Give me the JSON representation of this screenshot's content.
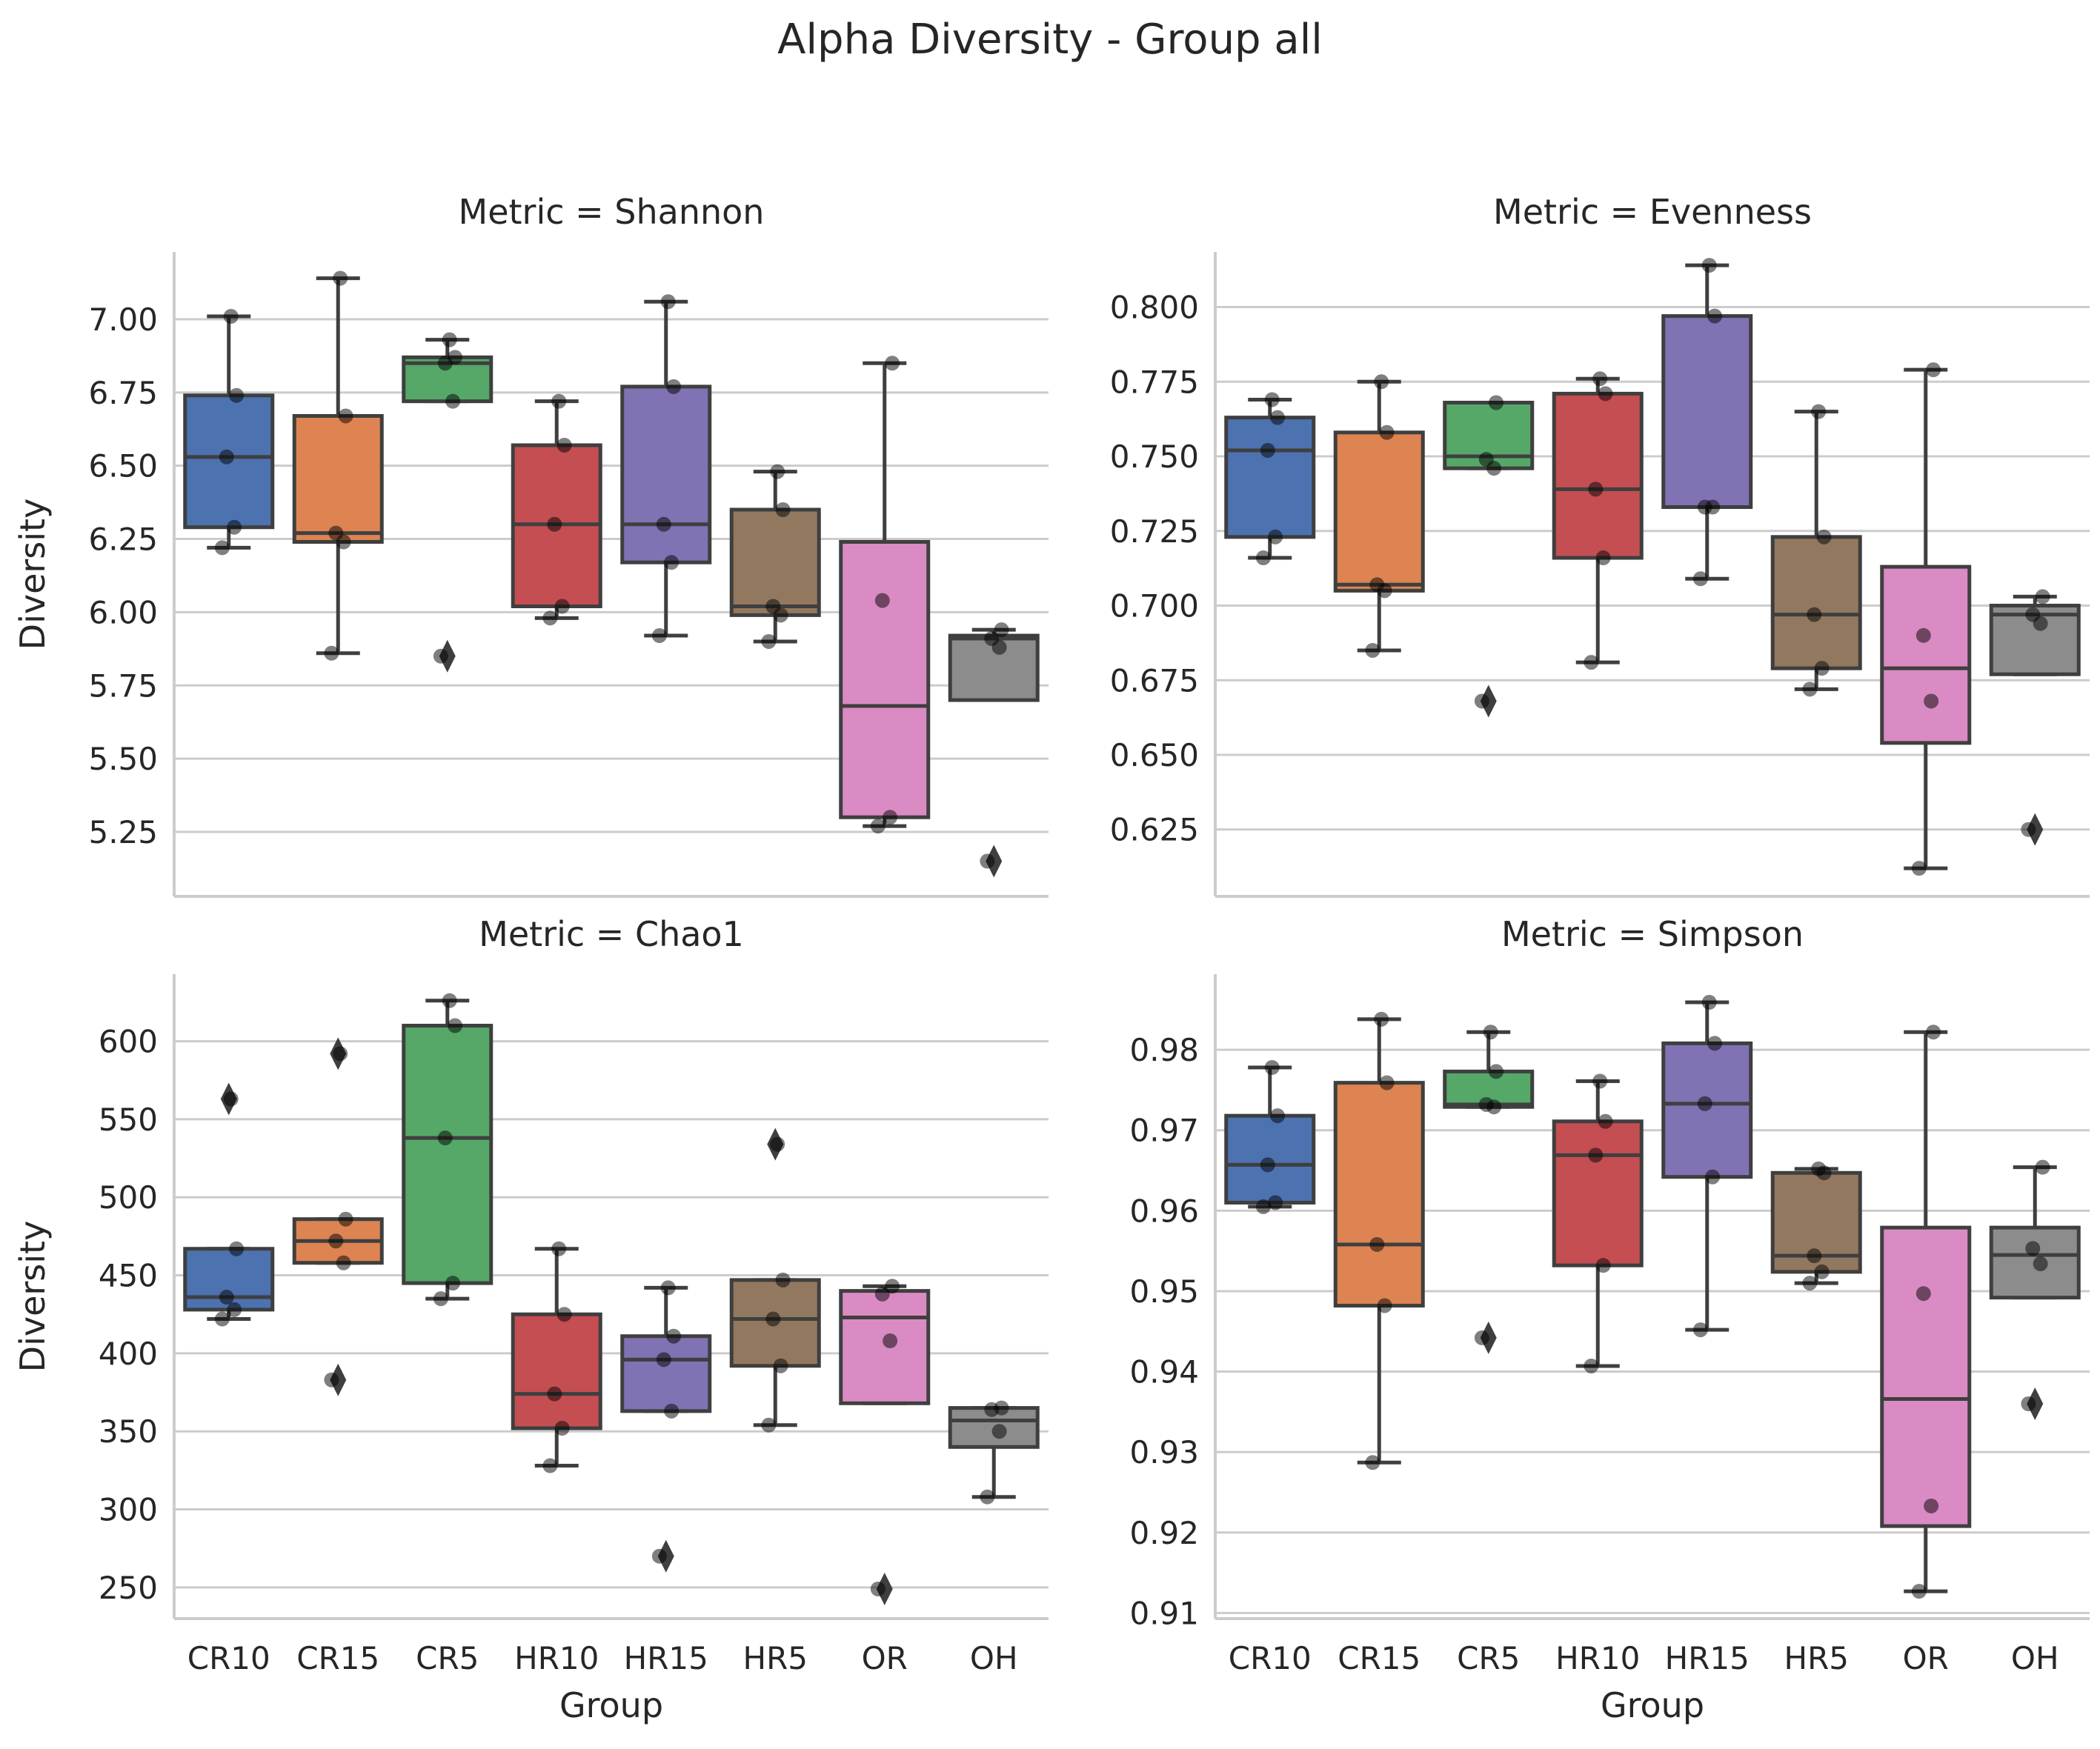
{
  "title": "Alpha Diversity - Group all",
  "xlabel": "Group",
  "ylabel": "Diversity",
  "categories": [
    "CR10",
    "CR15",
    "CR5",
    "HR10",
    "HR15",
    "HR5",
    "OR",
    "OH"
  ],
  "colors": [
    "#4c72b0",
    "#dd8452",
    "#55a868",
    "#c44e52",
    "#8172b3",
    "#937860",
    "#da8bc3",
    "#8c8c8c"
  ],
  "chart_data": [
    {
      "type": "box",
      "title": "Metric = Shannon",
      "ylabel": "Diversity",
      "xlabel": "",
      "ylim": [
        5.03,
        7.23
      ],
      "yticks": [
        "5.25",
        "5.50",
        "5.75",
        "6.00",
        "6.25",
        "6.50",
        "6.75",
        "7.00"
      ],
      "show_xticklabels": false,
      "boxes": [
        {
          "group": "CR10",
          "q1": 6.29,
          "median": 6.53,
          "q3": 6.74,
          "whislo": 6.22,
          "whishi": 7.01,
          "fliers": [],
          "points": [
            6.22,
            6.29,
            6.53,
            6.74,
            7.01
          ]
        },
        {
          "group": "CR15",
          "q1": 6.24,
          "median": 6.27,
          "q3": 6.67,
          "whislo": 5.86,
          "whishi": 7.14,
          "fliers": [],
          "points": [
            5.86,
            6.24,
            6.27,
            6.67,
            7.14
          ]
        },
        {
          "group": "CR5",
          "q1": 6.72,
          "median": 6.85,
          "q3": 6.87,
          "whislo": 6.72,
          "whishi": 6.93,
          "fliers": [
            5.85
          ],
          "points": [
            5.85,
            6.72,
            6.85,
            6.87,
            6.93
          ]
        },
        {
          "group": "HR10",
          "q1": 6.02,
          "median": 6.3,
          "q3": 6.57,
          "whislo": 5.98,
          "whishi": 6.72,
          "fliers": [],
          "points": [
            5.98,
            6.02,
            6.3,
            6.57,
            6.72
          ]
        },
        {
          "group": "HR15",
          "q1": 6.17,
          "median": 6.3,
          "q3": 6.77,
          "whislo": 5.92,
          "whishi": 7.06,
          "fliers": [],
          "points": [
            5.92,
            6.17,
            6.3,
            6.77,
            7.06
          ]
        },
        {
          "group": "HR5",
          "q1": 5.99,
          "median": 6.02,
          "q3": 6.35,
          "whislo": 5.9,
          "whishi": 6.48,
          "fliers": [],
          "points": [
            5.9,
            5.99,
            6.02,
            6.35,
            6.48
          ]
        },
        {
          "group": "OR",
          "q1": 5.3,
          "median": 5.68,
          "q3": 6.24,
          "whislo": 5.27,
          "whishi": 6.85,
          "fliers": [],
          "points": [
            5.27,
            5.3,
            6.04,
            6.85
          ]
        },
        {
          "group": "OH",
          "q1": 5.7,
          "median": 5.91,
          "q3": 5.92,
          "whislo": 5.7,
          "whishi": 5.94,
          "fliers": [
            5.15
          ],
          "points": [
            5.15,
            5.88,
            5.91,
            5.94
          ]
        }
      ]
    },
    {
      "type": "box",
      "title": "Metric = Evenness",
      "ylabel": "",
      "xlabel": "",
      "ylim": [
        0.6026,
        0.8185
      ],
      "yticks": [
        "0.625",
        "0.650",
        "0.675",
        "0.700",
        "0.725",
        "0.750",
        "0.775",
        "0.800"
      ],
      "show_xticklabels": false,
      "boxes": [
        {
          "group": "CR10",
          "q1": 0.723,
          "median": 0.752,
          "q3": 0.763,
          "whislo": 0.716,
          "whishi": 0.769,
          "fliers": [],
          "points": [
            0.716,
            0.723,
            0.752,
            0.763,
            0.769
          ]
        },
        {
          "group": "CR15",
          "q1": 0.705,
          "median": 0.707,
          "q3": 0.758,
          "whislo": 0.685,
          "whishi": 0.775,
          "fliers": [],
          "points": [
            0.685,
            0.705,
            0.707,
            0.758,
            0.775
          ]
        },
        {
          "group": "CR5",
          "q1": 0.746,
          "median": 0.75,
          "q3": 0.768,
          "whislo": 0.746,
          "whishi": 0.768,
          "fliers": [
            0.668
          ],
          "points": [
            0.668,
            0.746,
            0.749,
            0.768
          ]
        },
        {
          "group": "HR10",
          "q1": 0.716,
          "median": 0.739,
          "q3": 0.771,
          "whislo": 0.681,
          "whishi": 0.776,
          "fliers": [],
          "points": [
            0.681,
            0.716,
            0.739,
            0.771,
            0.776
          ]
        },
        {
          "group": "HR15",
          "q1": 0.733,
          "median": 0.733,
          "q3": 0.797,
          "whislo": 0.709,
          "whishi": 0.814,
          "fliers": [],
          "points": [
            0.709,
            0.733,
            0.733,
            0.797,
            0.814
          ]
        },
        {
          "group": "HR5",
          "q1": 0.679,
          "median": 0.697,
          "q3": 0.723,
          "whislo": 0.672,
          "whishi": 0.765,
          "fliers": [],
          "points": [
            0.672,
            0.679,
            0.697,
            0.723,
            0.765
          ]
        },
        {
          "group": "OR",
          "q1": 0.654,
          "median": 0.679,
          "q3": 0.713,
          "whislo": 0.612,
          "whishi": 0.779,
          "fliers": [],
          "points": [
            0.612,
            0.668,
            0.69,
            0.779
          ]
        },
        {
          "group": "OH",
          "q1": 0.677,
          "median": 0.697,
          "q3": 0.7,
          "whislo": 0.677,
          "whishi": 0.703,
          "fliers": [
            0.625
          ],
          "points": [
            0.625,
            0.694,
            0.697,
            0.703
          ]
        }
      ]
    },
    {
      "type": "box",
      "title": "Metric = Chao1",
      "ylabel": "Diversity",
      "xlabel": "Group",
      "ylim": [
        230,
        643
      ],
      "yticks": [
        "250",
        "300",
        "350",
        "400",
        "450",
        "500",
        "550",
        "600"
      ],
      "show_xticklabels": true,
      "boxes": [
        {
          "group": "CR10",
          "q1": 428,
          "median": 436,
          "q3": 467,
          "whislo": 422,
          "whishi": 467,
          "fliers": [
            563
          ],
          "points": [
            422,
            428,
            436,
            467,
            563
          ]
        },
        {
          "group": "CR15",
          "q1": 458,
          "median": 472,
          "q3": 486,
          "whislo": 458,
          "whishi": 486,
          "fliers": [
            592,
            383
          ],
          "points": [
            383,
            458,
            472,
            486,
            592
          ]
        },
        {
          "group": "CR5",
          "q1": 445,
          "median": 538,
          "q3": 610,
          "whislo": 435,
          "whishi": 626,
          "fliers": [],
          "points": [
            435,
            445,
            538,
            610,
            626
          ]
        },
        {
          "group": "HR10",
          "q1": 352,
          "median": 374,
          "q3": 425,
          "whislo": 328,
          "whishi": 467,
          "fliers": [],
          "points": [
            328,
            352,
            374,
            425,
            467
          ]
        },
        {
          "group": "HR15",
          "q1": 363,
          "median": 396,
          "q3": 411,
          "whislo": 363,
          "whishi": 442,
          "fliers": [
            270
          ],
          "points": [
            270,
            363,
            396,
            411,
            442
          ]
        },
        {
          "group": "HR5",
          "q1": 392,
          "median": 422,
          "q3": 447,
          "whislo": 354,
          "whishi": 447,
          "fliers": [
            534
          ],
          "points": [
            354,
            392,
            422,
            447,
            534
          ]
        },
        {
          "group": "OR",
          "q1": 368,
          "median": 423,
          "q3": 440,
          "whislo": 368,
          "whishi": 443,
          "fliers": [
            249
          ],
          "points": [
            249,
            408,
            438,
            443
          ]
        },
        {
          "group": "OH",
          "q1": 340,
          "median": 357,
          "q3": 365,
          "whislo": 308,
          "whishi": 365,
          "fliers": [],
          "points": [
            308,
            350,
            364,
            365
          ]
        }
      ]
    },
    {
      "type": "box",
      "title": "Metric = Simpson",
      "ylabel": "",
      "xlabel": "Group",
      "ylim": [
        0.9093,
        0.9894
      ],
      "yticks": [
        "0.91",
        "0.92",
        "0.93",
        "0.94",
        "0.95",
        "0.96",
        "0.97",
        "0.98"
      ],
      "show_xticklabels": true,
      "boxes": [
        {
          "group": "CR10",
          "q1": 0.961,
          "median": 0.9657,
          "q3": 0.9718,
          "whislo": 0.9605,
          "whishi": 0.9778,
          "fliers": [],
          "points": [
            0.9605,
            0.961,
            0.9657,
            0.9718,
            0.9778
          ]
        },
        {
          "group": "CR15",
          "q1": 0.9482,
          "median": 0.9558,
          "q3": 0.9759,
          "whislo": 0.9287,
          "whishi": 0.9838,
          "fliers": [],
          "points": [
            0.9287,
            0.9482,
            0.9558,
            0.9759,
            0.9838
          ]
        },
        {
          "group": "CR5",
          "q1": 0.9729,
          "median": 0.9732,
          "q3": 0.9773,
          "whislo": 0.9729,
          "whishi": 0.9822,
          "fliers": [
            0.9442
          ],
          "points": [
            0.9442,
            0.9729,
            0.9732,
            0.9773,
            0.9822
          ]
        },
        {
          "group": "HR10",
          "q1": 0.9532,
          "median": 0.9669,
          "q3": 0.9711,
          "whislo": 0.9407,
          "whishi": 0.9761,
          "fliers": [],
          "points": [
            0.9407,
            0.9532,
            0.9669,
            0.9711,
            0.9761
          ]
        },
        {
          "group": "HR15",
          "q1": 0.9642,
          "median": 0.9733,
          "q3": 0.9808,
          "whislo": 0.9452,
          "whishi": 0.9859,
          "fliers": [],
          "points": [
            0.9452,
            0.9642,
            0.9733,
            0.9808,
            0.9859
          ]
        },
        {
          "group": "HR5",
          "q1": 0.9524,
          "median": 0.9544,
          "q3": 0.9647,
          "whislo": 0.951,
          "whishi": 0.9652,
          "fliers": [],
          "points": [
            0.951,
            0.9524,
            0.9544,
            0.9647,
            0.9652
          ]
        },
        {
          "group": "OR",
          "q1": 0.9208,
          "median": 0.9366,
          "q3": 0.9579,
          "whislo": 0.9127,
          "whishi": 0.9822,
          "fliers": [],
          "points": [
            0.9127,
            0.9233,
            0.9497,
            0.9822
          ]
        },
        {
          "group": "OH",
          "q1": 0.9492,
          "median": 0.9545,
          "q3": 0.9579,
          "whislo": 0.9492,
          "whishi": 0.9654,
          "fliers": [
            0.936
          ],
          "points": [
            0.936,
            0.9534,
            0.9553,
            0.9654
          ]
        }
      ]
    }
  ]
}
